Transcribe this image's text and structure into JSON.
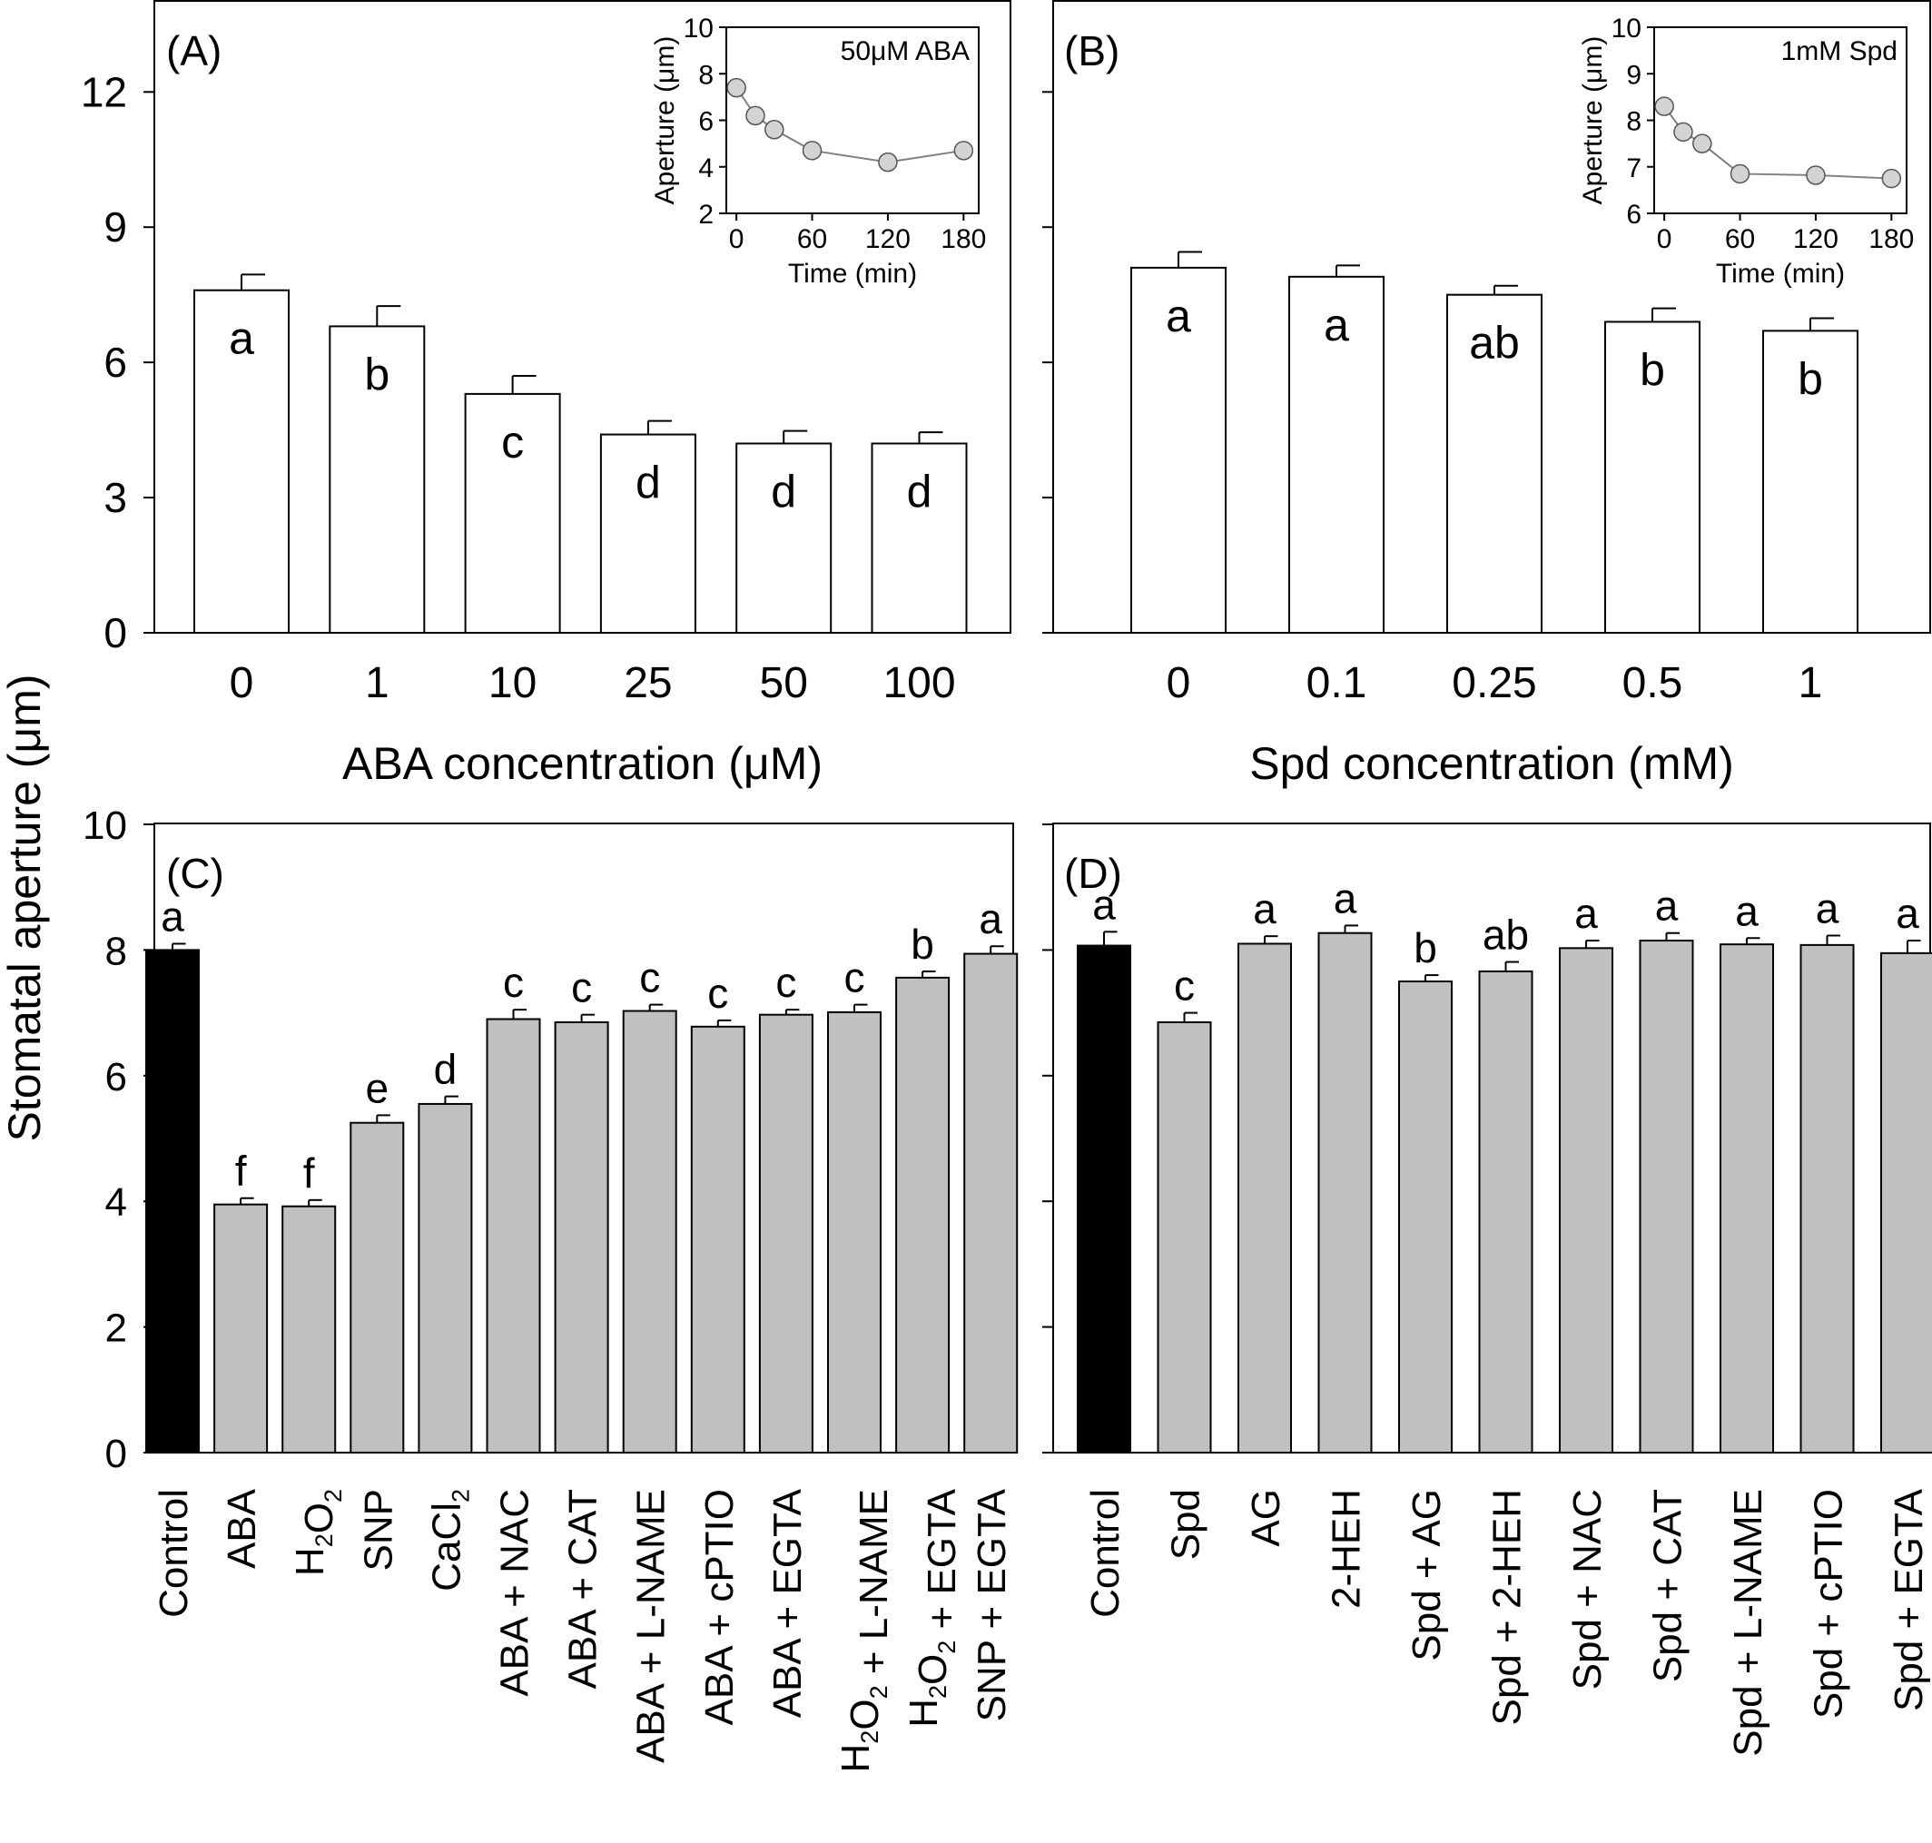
{
  "figure": {
    "shared_ylabel": "Stomatal aperture (μm)"
  },
  "chart_data": [
    {
      "id": "A",
      "type": "bar",
      "panel_label": "(A)",
      "categories": [
        "0",
        "1",
        "10",
        "25",
        "50",
        "100"
      ],
      "values": [
        7.6,
        6.8,
        5.3,
        4.4,
        4.2,
        4.2
      ],
      "errors": [
        0.35,
        0.45,
        0.4,
        0.3,
        0.28,
        0.25
      ],
      "letters": [
        "a",
        "b",
        "c",
        "d",
        "d",
        "d"
      ],
      "xlabel": "ABA concentration (μM)",
      "ylim": [
        0,
        14
      ],
      "yticks": [
        0,
        3,
        6,
        9,
        12
      ],
      "bar_color": "#ffffff",
      "inset": {
        "type": "line",
        "label": "50μM ABA",
        "x": [
          0,
          15,
          30,
          60,
          120,
          180
        ],
        "y": [
          7.4,
          6.2,
          5.6,
          4.7,
          4.2,
          4.7
        ],
        "xlabel": "Time (min)",
        "ylabel": "Aperture (μm)",
        "xticks": [
          0,
          60,
          120,
          180
        ],
        "xlim": [
          -8,
          192
        ],
        "ylim": [
          2,
          10
        ],
        "yticks": [
          2,
          4,
          6,
          8,
          10
        ],
        "marker_color": "#d3d3d3"
      }
    },
    {
      "id": "B",
      "type": "bar",
      "panel_label": "(B)",
      "categories": [
        "0",
        "0.1",
        "0.25",
        "0.5",
        "1"
      ],
      "values": [
        8.1,
        7.9,
        7.5,
        6.9,
        6.7
      ],
      "errors": [
        0.35,
        0.25,
        0.2,
        0.3,
        0.28
      ],
      "letters": [
        "a",
        "a",
        "ab",
        "b",
        "b"
      ],
      "xlabel": "Spd concentration (mM)",
      "ylim": [
        0,
        14
      ],
      "yticks": [
        0,
        3,
        6,
        9,
        12
      ],
      "bar_color": "#ffffff",
      "inset": {
        "type": "line",
        "label": "1mM Spd",
        "x": [
          0,
          15,
          30,
          60,
          120,
          180
        ],
        "y": [
          8.3,
          7.75,
          7.5,
          6.85,
          6.82,
          6.75
        ],
        "xlabel": "Time (min)",
        "ylabel": "Aperture (μm)",
        "xticks": [
          0,
          60,
          120,
          180
        ],
        "xlim": [
          -8,
          192
        ],
        "ylim": [
          6,
          10
        ],
        "yticks": [
          6,
          7,
          8,
          9,
          10
        ],
        "marker_color": "#d3d3d3"
      }
    },
    {
      "id": "C",
      "type": "bar",
      "panel_label": "(C)",
      "categories": [
        "Control",
        "ABA",
        "H2O2",
        "SNP",
        "CaCl2",
        "ABA + NAC",
        "ABA + CAT",
        "ABA + L-NAME",
        "ABA + cPTIO",
        "ABA + EGTA",
        "H2O2 + L-NAME",
        "H2O2 + EGTA",
        "SNP + EGTA"
      ],
      "values": [
        8.0,
        3.95,
        3.92,
        5.25,
        5.55,
        6.9,
        6.85,
        7.03,
        6.78,
        6.97,
        7.01,
        7.56,
        7.94
      ],
      "errors": [
        0.1,
        0.1,
        0.1,
        0.12,
        0.12,
        0.15,
        0.12,
        0.1,
        0.1,
        0.08,
        0.12,
        0.1,
        0.12
      ],
      "letters": [
        "a",
        "f",
        "f",
        "e",
        "d",
        "c",
        "c",
        "c",
        "c",
        "c",
        "c",
        "b",
        "a"
      ],
      "ylim": [
        0,
        10
      ],
      "yticks": [
        0,
        2,
        4,
        6,
        8,
        10
      ],
      "bar_colors": [
        "#000000",
        "#c0c0c0",
        "#c0c0c0",
        "#c0c0c0",
        "#c0c0c0",
        "#c0c0c0",
        "#c0c0c0",
        "#c0c0c0",
        "#c0c0c0",
        "#c0c0c0",
        "#c0c0c0",
        "#c0c0c0",
        "#c0c0c0"
      ]
    },
    {
      "id": "D",
      "type": "bar",
      "panel_label": "(D)",
      "categories": [
        "Control",
        "Spd",
        "AG",
        "2-HEH",
        "Spd + AG",
        "Spd + 2-HEH",
        "Spd + NAC",
        "Spd + CAT",
        "Spd + L-NAME",
        "Spd + cPTIO",
        "Spd + EGTA"
      ],
      "values": [
        8.07,
        6.85,
        8.1,
        8.27,
        7.5,
        7.66,
        8.03,
        8.15,
        8.09,
        8.08,
        7.95
      ],
      "errors": [
        0.22,
        0.15,
        0.12,
        0.12,
        0.1,
        0.15,
        0.12,
        0.12,
        0.1,
        0.15,
        0.2
      ],
      "letters": [
        "a",
        "c",
        "a",
        "a",
        "b",
        "ab",
        "a",
        "a",
        "a",
        "a",
        "a"
      ],
      "ylim": [
        0,
        10
      ],
      "yticks": [
        0,
        2,
        4,
        6,
        8,
        10
      ],
      "bar_colors": [
        "#000000",
        "#c0c0c0",
        "#c0c0c0",
        "#c0c0c0",
        "#c0c0c0",
        "#c0c0c0",
        "#c0c0c0",
        "#c0c0c0",
        "#c0c0c0",
        "#c0c0c0",
        "#c0c0c0"
      ]
    }
  ]
}
